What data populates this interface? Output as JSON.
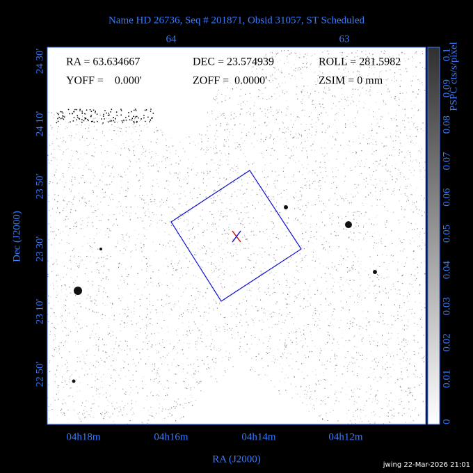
{
  "title": "Name HD 26736, Seq # 201871, Obsid 31057, ST Scheduled",
  "info": {
    "ra": "RA = 63.634667",
    "dec": "DEC = 23.574939",
    "roll": "ROLL = 281.5982",
    "yoff": "YOFF =    0.000'",
    "zoff": "ZOFF =  0.0000'",
    "zsim": "ZSIM = 0 mm"
  },
  "top_ticks": [
    "64",
    "63"
  ],
  "left_ticks": [
    "24 30'",
    "24 10'",
    "23 50'",
    "23 30'",
    "23 10'",
    "22 50'"
  ],
  "bottom_ticks": [
    "04h18m",
    "04h16m",
    "04h14m",
    "04h12m"
  ],
  "x_label": "RA (J2000)",
  "y_label": "Dec (J2000)",
  "colorbar": {
    "label": "PSPC cts/s/pixel",
    "ticks": [
      "0",
      "0.01",
      "0.02",
      "0.03",
      "0.04",
      "0.05",
      "0.06",
      "0.07",
      "0.08",
      "0.09",
      "0.1"
    ]
  },
  "footer": "jwing 22-Mar-2026 21:01"
}
